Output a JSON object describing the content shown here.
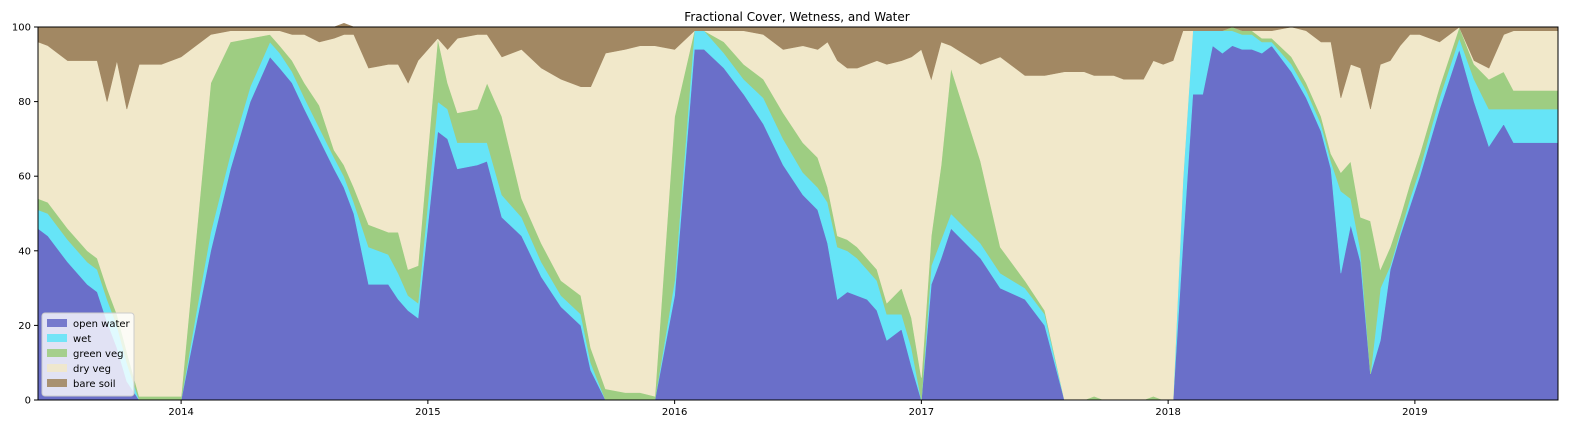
{
  "chart_data": {
    "type": "area",
    "stacked": true,
    "title": "Fractional Cover, Wetness, and Water",
    "xlabel": "",
    "ylabel": "",
    "xlim": [
      2013.42,
      2019.58
    ],
    "ylim": [
      0,
      100
    ],
    "grid": false,
    "legend_position": "lower-left",
    "x_ticks": [
      {
        "value": 2014,
        "label": "2014"
      },
      {
        "value": 2015,
        "label": "2015"
      },
      {
        "value": 2016,
        "label": "2016"
      },
      {
        "value": 2017,
        "label": "2017"
      },
      {
        "value": 2018,
        "label": "2018"
      },
      {
        "value": 2019,
        "label": "2019"
      }
    ],
    "y_ticks": [
      {
        "value": 0,
        "label": "0"
      },
      {
        "value": 20,
        "label": "20"
      },
      {
        "value": 40,
        "label": "40"
      },
      {
        "value": 60,
        "label": "60"
      },
      {
        "value": 80,
        "label": "80"
      },
      {
        "value": 100,
        "label": "100"
      }
    ],
    "x": [
      2013.42,
      2013.46,
      2013.54,
      2013.62,
      2013.66,
      2013.7,
      2013.74,
      2013.78,
      2013.83,
      2013.92,
      2013.96,
      2014.0,
      2014.06,
      2014.12,
      2014.2,
      2014.28,
      2014.36,
      2014.4,
      2014.45,
      2014.5,
      2014.56,
      2014.62,
      2014.66,
      2014.7,
      2014.76,
      2014.84,
      2014.88,
      2014.92,
      2014.96,
      2015.04,
      2015.08,
      2015.12,
      2015.2,
      2015.24,
      2015.3,
      2015.38,
      2015.46,
      2015.54,
      2015.62,
      2015.66,
      2015.72,
      2015.8,
      2015.86,
      2015.92,
      2016.0,
      2016.08,
      2016.12,
      2016.2,
      2016.28,
      2016.36,
      2016.44,
      2016.52,
      2016.58,
      2016.62,
      2016.66,
      2016.7,
      2016.74,
      2016.78,
      2016.82,
      2016.86,
      2016.92,
      2016.96,
      2017.0,
      2017.04,
      2017.08,
      2017.12,
      2017.24,
      2017.32,
      2017.42,
      2017.5,
      2017.58,
      2017.62,
      2017.66,
      2017.7,
      2017.74,
      2017.78,
      2017.82,
      2017.86,
      2017.9,
      2017.94,
      2017.98,
      2018.02,
      2018.06,
      2018.1,
      2018.14,
      2018.18,
      2018.22,
      2018.26,
      2018.3,
      2018.34,
      2018.38,
      2018.42,
      2018.5,
      2018.56,
      2018.62,
      2018.66,
      2018.7,
      2018.74,
      2018.78,
      2018.82,
      2018.86,
      2018.9,
      2018.94,
      2018.98,
      2019.02,
      2019.1,
      2019.18,
      2019.24,
      2019.3,
      2019.36,
      2019.4,
      2019.44,
      2019.48,
      2019.52,
      2019.56,
      2019.58
    ],
    "series": [
      {
        "name": "open water",
        "color": "#6a6fc9",
        "values": [
          46,
          44,
          37,
          31,
          29,
          21,
          14,
          5,
          0,
          0,
          0,
          0,
          20,
          40,
          62,
          80,
          92,
          89,
          85,
          78,
          70,
          62,
          57,
          50,
          31,
          31,
          27,
          24,
          22,
          72,
          70,
          62,
          63,
          64,
          49,
          44,
          33,
          25,
          20,
          8,
          0,
          0,
          0,
          0,
          28,
          94,
          94,
          89,
          82,
          74,
          63,
          55,
          51,
          42,
          27,
          29,
          28,
          27,
          24,
          16,
          19,
          9,
          0,
          31,
          38,
          46,
          38,
          30,
          27,
          20,
          0,
          0,
          0,
          0,
          0,
          0,
          0,
          0,
          0,
          0,
          0,
          0,
          42,
          82,
          82,
          95,
          93,
          95,
          94,
          94,
          93,
          95,
          88,
          81,
          72,
          62,
          34,
          47,
          37,
          7,
          16,
          35,
          44,
          52,
          60,
          78,
          94,
          80,
          68,
          74,
          69,
          69,
          69,
          69,
          69,
          69
        ]
      },
      {
        "name": "wet",
        "color": "#66e4f7",
        "values": [
          5,
          6,
          6,
          6,
          6,
          6,
          6,
          5,
          0,
          0,
          0,
          0,
          3,
          5,
          4,
          4,
          4,
          4,
          3,
          3,
          3,
          3,
          3,
          3,
          10,
          8,
          7,
          4,
          4,
          8,
          8,
          7,
          6,
          5,
          6,
          5,
          4,
          3,
          3,
          2,
          0,
          0,
          0,
          0,
          4,
          5,
          5,
          4,
          4,
          7,
          7,
          6,
          6,
          11,
          14,
          11,
          10,
          8,
          8,
          7,
          4,
          5,
          0,
          5,
          5,
          4,
          4,
          4,
          3,
          3,
          0,
          0,
          0,
          0,
          0,
          0,
          0,
          0,
          0,
          0,
          0,
          0,
          17,
          17,
          17,
          4,
          6,
          4,
          4,
          4,
          3,
          1,
          2,
          2,
          2,
          2,
          22,
          7,
          3,
          0,
          14,
          1,
          1,
          2,
          2,
          3,
          3,
          6,
          10,
          4,
          9,
          9,
          9,
          9,
          9,
          9
        ]
      },
      {
        "name": "green veg",
        "color": "#9ecd82",
        "values": [
          3,
          3,
          3,
          3,
          3,
          3,
          3,
          3,
          1,
          1,
          1,
          1,
          20,
          40,
          30,
          13,
          2,
          2,
          3,
          4,
          6,
          2,
          3,
          4,
          6,
          6,
          11,
          7,
          10,
          17,
          7,
          8,
          9,
          16,
          21,
          5,
          5,
          4,
          5,
          4,
          3,
          2,
          2,
          1,
          44,
          0,
          0,
          3,
          4,
          5,
          7,
          8,
          8,
          4,
          3,
          3,
          3,
          3,
          3,
          3,
          7,
          8,
          6,
          8,
          20,
          39,
          22,
          7,
          2,
          1,
          0,
          0,
          0,
          1,
          0,
          0,
          0,
          0,
          0,
          1,
          0,
          0,
          0,
          0,
          0,
          0,
          0,
          1,
          1,
          1,
          1,
          1,
          2,
          2,
          2,
          2,
          5,
          10,
          9,
          41,
          5,
          5,
          4,
          4,
          4,
          3,
          3,
          4,
          8,
          10,
          5,
          5,
          5,
          5,
          5,
          5
        ]
      },
      {
        "name": "dry veg",
        "color": "#f1e8ca",
        "values": [
          42,
          42,
          45,
          51,
          53,
          50,
          68,
          65,
          89,
          89,
          90,
          91,
          52,
          13,
          3,
          2,
          1,
          4,
          7,
          13,
          17,
          30,
          35,
          41,
          42,
          45,
          45,
          50,
          55,
          0,
          9,
          20,
          20,
          13,
          16,
          40,
          47,
          54,
          56,
          70,
          90,
          92,
          93,
          94,
          18,
          0,
          0,
          3,
          9,
          12,
          17,
          26,
          29,
          39,
          47,
          46,
          48,
          52,
          56,
          64,
          61,
          70,
          88,
          42,
          33,
          6,
          26,
          51,
          55,
          63,
          88,
          88,
          88,
          86,
          87,
          87,
          86,
          86,
          86,
          90,
          90,
          91,
          40,
          0,
          0,
          0,
          0,
          0,
          0,
          0,
          2,
          2,
          8,
          14,
          20,
          30,
          20,
          26,
          40,
          30,
          55,
          50,
          46,
          40,
          32,
          12,
          0,
          1,
          3,
          10,
          16,
          16,
          16,
          16,
          16,
          16
        ]
      },
      {
        "name": "bare soil",
        "color": "#a28863",
        "values": [
          4,
          5,
          9,
          9,
          9,
          20,
          9,
          22,
          10,
          10,
          9,
          8,
          5,
          2,
          1,
          1,
          1,
          1,
          2,
          2,
          4,
          3,
          3,
          2,
          11,
          10,
          10,
          15,
          9,
          3,
          6,
          3,
          2,
          2,
          8,
          6,
          11,
          14,
          16,
          16,
          7,
          6,
          5,
          5,
          6,
          1,
          1,
          1,
          1,
          2,
          6,
          5,
          6,
          4,
          9,
          11,
          11,
          10,
          9,
          10,
          9,
          8,
          6,
          14,
          4,
          5,
          10,
          8,
          13,
          13,
          12,
          12,
          12,
          13,
          13,
          13,
          14,
          14,
          14,
          9,
          10,
          9,
          1,
          1,
          1,
          1,
          1,
          0,
          1,
          1,
          1,
          1,
          0,
          1,
          4,
          4,
          19,
          10,
          11,
          22,
          10,
          9,
          5,
          2,
          2,
          4,
          0,
          9,
          11,
          2,
          1,
          1,
          1,
          1,
          1,
          1
        ]
      }
    ]
  }
}
